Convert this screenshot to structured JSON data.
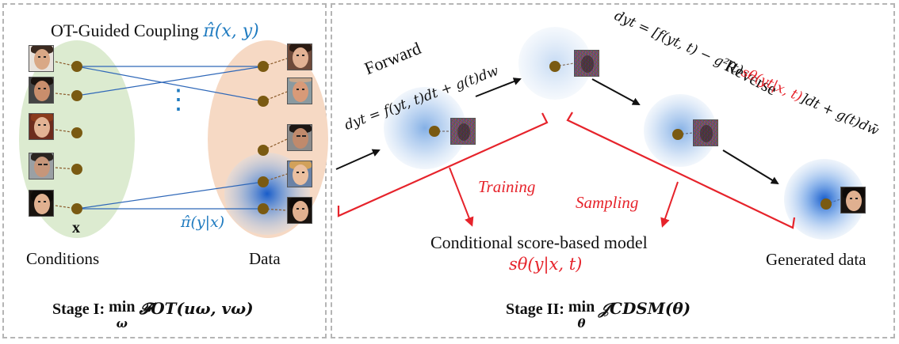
{
  "stage1": {
    "title_prefix": "OT-Guided Coupling ",
    "title_pi": "π̂(x, y)",
    "ellipsis": "⋮",
    "x_label": "x",
    "pi_cond": "π̂(y|x)",
    "conditions_label": "Conditions",
    "data_label": "Data",
    "stage_prefix": "Stage I: ",
    "stage_min": "min",
    "stage_sub": "ω",
    "stage_formula": "𝓕OT(uω, vω)"
  },
  "stage2": {
    "forward_label": "Forward",
    "forward_eq": "dyt = f(yt, t)dt + g(t)dw",
    "reverse_label": "Reverse",
    "reverse_eq_part1": "dyt = [f(yt, t) − g²(t)",
    "reverse_eq_score": "sθ(yt|x, t)",
    "reverse_eq_part2": "]dt + g(t)dw̄",
    "training_label": "Training",
    "sampling_label": "Sampling",
    "model_label": "Conditional score-based model",
    "model_formula": "sθ(y|x, t)",
    "generated_label": "Generated data",
    "stage_prefix": "Stage II: ",
    "stage_min": "min",
    "stage_sub": "θ",
    "stage_formula": "𝒥CDSM(θ)"
  },
  "colors": {
    "blue": "#1f7bc0",
    "red": "#e6232b",
    "node": "#7a5a12",
    "green_region": "#dcebd0",
    "orange_region": "#f6d9c4",
    "diffusion_blue": "#1f6fd1"
  }
}
